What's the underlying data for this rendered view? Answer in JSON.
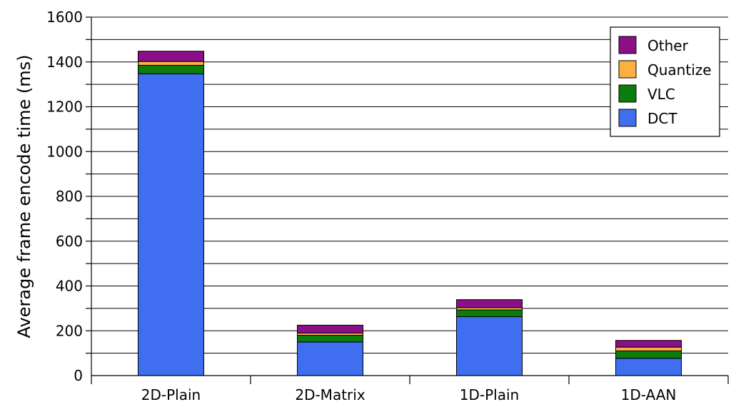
{
  "chart_data": {
    "type": "bar",
    "stacked": true,
    "title": "",
    "xlabel": "",
    "ylabel": "Average frame encode time (ms)",
    "ylim": [
      0,
      1600
    ],
    "yticks": [
      0,
      200,
      400,
      600,
      800,
      1000,
      1200,
      1400,
      1600
    ],
    "grid": true,
    "legend_position": "top-right",
    "categories": [
      "2D-Plain",
      "2D-Matrix",
      "1D-Plain",
      "1D-AAN"
    ],
    "series": [
      {
        "name": "DCT",
        "color": "#3f6ff0",
        "values": [
          1347,
          150,
          263,
          77
        ]
      },
      {
        "name": "VLC",
        "color": "#0b7d0b",
        "values": [
          38,
          30,
          30,
          33
        ]
      },
      {
        "name": "Quantize",
        "color": "#fbb040",
        "values": [
          17,
          10,
          10,
          17
        ]
      },
      {
        "name": "Other",
        "color": "#8a0f88",
        "values": [
          46,
          35,
          36,
          30
        ]
      }
    ]
  }
}
